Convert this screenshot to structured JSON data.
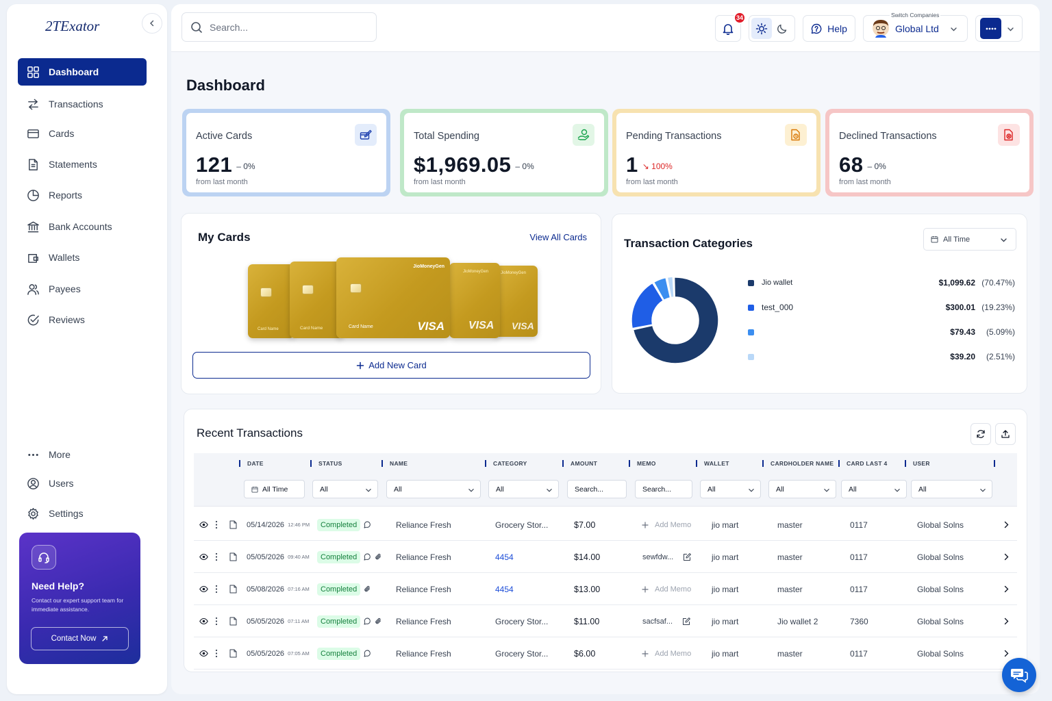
{
  "app": {
    "logo": "2TExator"
  },
  "sidebar": {
    "items": [
      {
        "label": "Dashboard",
        "icon": "grid-icon"
      },
      {
        "label": "Transactions",
        "icon": "swap-icon"
      },
      {
        "label": "Cards",
        "icon": "card-icon"
      },
      {
        "label": "Statements",
        "icon": "document-icon"
      },
      {
        "label": "Reports",
        "icon": "pie-icon"
      },
      {
        "label": "Bank Accounts",
        "icon": "bank-icon"
      },
      {
        "label": "Wallets",
        "icon": "wallet-icon"
      },
      {
        "label": "Payees",
        "icon": "users-icon"
      },
      {
        "label": "Reviews",
        "icon": "check-circle-icon"
      }
    ],
    "bottom_items": [
      {
        "label": "More",
        "icon": "dots-icon"
      },
      {
        "label": "Users",
        "icon": "user-circle-icon"
      },
      {
        "label": "Settings",
        "icon": "gear-icon"
      }
    ],
    "help": {
      "title": "Need Help?",
      "text": "Contact our expert support team for immediate assistance.",
      "button": "Contact Now"
    }
  },
  "topbar": {
    "search_placeholder": "Search...",
    "notification_count": "34",
    "help_label": "Help",
    "switch_label": "Switch Companies",
    "company": "Global Ltd"
  },
  "page": {
    "title": "Dashboard"
  },
  "stats": [
    {
      "title": "Active Cards",
      "value": "121",
      "change": "– 0%",
      "sub": "from last month",
      "accent": "#bcd3f2",
      "icon_bg": "#e3ecfb",
      "icon_color": "#1e40af",
      "change_color": "#374151"
    },
    {
      "title": "Total Spending",
      "value": "$1,969.05",
      "change": "– 0%",
      "sub": "from last month",
      "accent": "#bfe8c8",
      "icon_bg": "#e2f6e6",
      "icon_color": "#16a34a",
      "change_color": "#374151"
    },
    {
      "title": "Pending Transactions",
      "value": "1",
      "change": "↘ 100%",
      "sub": "from last month",
      "accent": "#f7e2b0",
      "icon_bg": "#fdf0d2",
      "icon_color": "#d97706",
      "change_color": "#dc2626"
    },
    {
      "title": "Declined Transactions",
      "value": "68",
      "change": "– 0%",
      "sub": "from last month",
      "accent": "#f6c6c6",
      "icon_bg": "#fde3e3",
      "icon_color": "#dc2626",
      "change_color": "#374151"
    }
  ],
  "my_cards": {
    "title": "My Cards",
    "view_all": "View All Cards",
    "add_new": "Add New Card",
    "card_brand": "VISA",
    "card_name": "Card Name",
    "issuer": "JioMoneyGen"
  },
  "categories": {
    "title": "Transaction Categories",
    "filter": "All Time",
    "items": [
      {
        "name": "Jio wallet",
        "amount": "$1,099.62",
        "pct": "(70.47%)",
        "value": 70.47,
        "color": "#1b3a6b"
      },
      {
        "name": "test_000",
        "amount": "$300.01",
        "pct": "(19.23%)",
        "value": 19.23,
        "color": "#1f5ee6"
      },
      {
        "name": "",
        "amount": "$79.43",
        "pct": "(5.09%)",
        "value": 5.09,
        "color": "#3b8ef0"
      },
      {
        "name": "",
        "amount": "$39.20",
        "pct": "(2.51%)",
        "value": 2.51,
        "color": "#b9d8f8"
      }
    ]
  },
  "recent": {
    "title": "Recent Transactions",
    "columns": [
      "DATE",
      "STATUS",
      "NAME",
      "CATEGORY",
      "AMOUNT",
      "MEMO",
      "WALLET",
      "CARDHOLDER NAME",
      "CARD LAST 4",
      "USER"
    ],
    "filters": {
      "date": "All Time",
      "status": "All",
      "name": "All",
      "category": "All",
      "amount": "Search...",
      "memo": "Search...",
      "wallet": "All",
      "cardholder": "All",
      "card": "All",
      "user": "All"
    },
    "rows": [
      {
        "date": "05/14/2026",
        "time": "12:46 PM",
        "status": "Completed",
        "name": "Reliance Fresh",
        "category": "Grocery Stor...",
        "cat_link": false,
        "amount": "$7.00",
        "memo": "Add Memo",
        "memo_add": true,
        "wallet": "jio mart",
        "cardholder": "master",
        "card": "0117",
        "user": "Global Solns",
        "attach": false
      },
      {
        "date": "05/05/2026",
        "time": "09:40 AM",
        "status": "Completed",
        "name": "Reliance Fresh",
        "category": "4454",
        "cat_link": true,
        "amount": "$14.00",
        "memo": "sewfdw...",
        "memo_add": false,
        "wallet": "jio mart",
        "cardholder": "master",
        "card": "0117",
        "user": "Global Solns",
        "attach": true
      },
      {
        "date": "05/08/2026",
        "time": "07:16 AM",
        "status": "Completed",
        "name": "Reliance Fresh",
        "category": "4454",
        "cat_link": true,
        "amount": "$13.00",
        "memo": "Add Memo",
        "memo_add": true,
        "wallet": "jio mart",
        "cardholder": "master",
        "card": "0117",
        "user": "Global Solns",
        "attach": "only"
      },
      {
        "date": "05/05/2026",
        "time": "07:11 AM",
        "status": "Completed",
        "name": "Reliance Fresh",
        "category": "Grocery Stor...",
        "cat_link": false,
        "amount": "$11.00",
        "memo": "sacfsaf...",
        "memo_add": false,
        "wallet": "jio mart",
        "cardholder": "Jio wallet 2",
        "card": "7360",
        "user": "Global Solns",
        "attach": true
      },
      {
        "date": "05/05/2026",
        "time": "07:05 AM",
        "status": "Completed",
        "name": "Reliance Fresh",
        "category": "Grocery Stor...",
        "cat_link": false,
        "amount": "$6.00",
        "memo": "Add Memo",
        "memo_add": true,
        "wallet": "jio mart",
        "cardholder": "master",
        "card": "0117",
        "user": "Global Solns",
        "attach": false
      }
    ]
  }
}
